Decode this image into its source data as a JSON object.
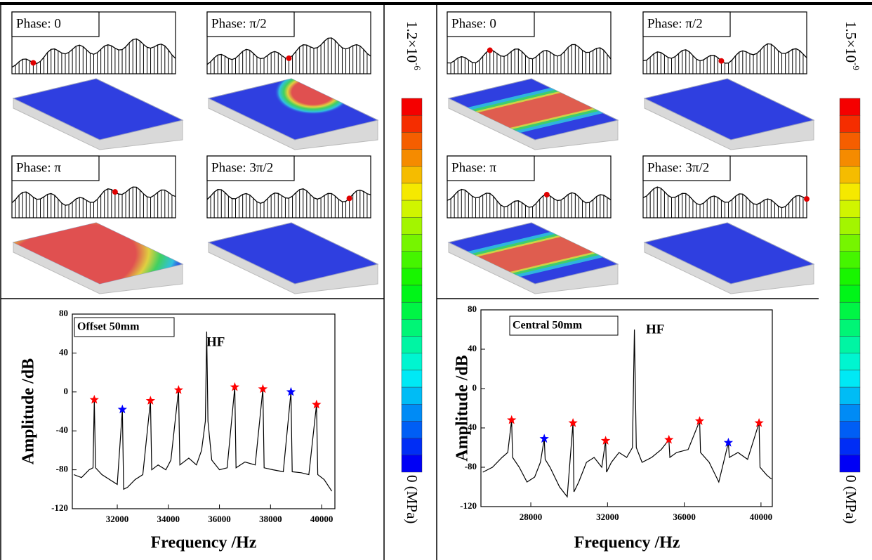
{
  "chart_data": [
    {
      "type": "line",
      "x": [
        30300,
        30600,
        30900,
        31050,
        31100,
        31150,
        31400,
        31700,
        32000,
        32200,
        32250,
        32400,
        32700,
        33000,
        33300,
        33350,
        33600,
        33900,
        34100,
        34400,
        34450,
        34800,
        35100,
        35300,
        35450,
        35500,
        35550,
        35700,
        36000,
        36300,
        36600,
        36650,
        37000,
        37400,
        37700,
        37750,
        38100,
        38500,
        38800,
        38850,
        39200,
        39500,
        39800,
        39850,
        40100,
        40400
      ],
      "series": [
        {
          "color": "#000000",
          "values": [
            -85,
            -88,
            -80,
            -78,
            -8,
            -78,
            -85,
            -90,
            -95,
            -18,
            -100,
            -98,
            -90,
            -85,
            -9,
            -80,
            -75,
            -80,
            -70,
            2,
            -75,
            -68,
            -75,
            -60,
            -30,
            62,
            -30,
            -70,
            -80,
            -78,
            5,
            -78,
            -72,
            -75,
            3,
            -78,
            -80,
            -82,
            0,
            -82,
            -83,
            -85,
            -13,
            -85,
            -90,
            -102
          ]
        }
      ],
      "markers": {
        "x": [
          31100,
          32200,
          33300,
          34400,
          36600,
          37700,
          38800,
          39800
        ],
        "values": [
          -8,
          -18,
          -9,
          2,
          5,
          3,
          0,
          -13
        ],
        "colors": [
          "#ff0000",
          "#0000ff",
          "#ff0000",
          "#ff0000",
          "#ff0000",
          "#ff0000",
          "#0000ff",
          "#ff0000"
        ]
      },
      "xlim": [
        30240,
        40520
      ],
      "xticks": [
        32000,
        34000,
        36000,
        38000,
        40000
      ],
      "ylim": [
        -120,
        80
      ],
      "yticks": [
        -120,
        -80,
        -40,
        0,
        40,
        80
      ],
      "x_label": "Frequency /Hz",
      "y_label": "Amplitude /dB",
      "annotations": [
        "Offset 50mm",
        "HF"
      ]
    },
    {
      "type": "line",
      "x": [
        25500,
        26000,
        26500,
        26800,
        27000,
        27050,
        27400,
        27800,
        28200,
        28500,
        28700,
        28750,
        29000,
        29500,
        29900,
        30200,
        30250,
        30500,
        30900,
        31300,
        31700,
        31900,
        31950,
        32200,
        32600,
        33000,
        33300,
        33400,
        33500,
        33800,
        34300,
        34800,
        35200,
        35250,
        35600,
        36200,
        36800,
        36850,
        37300,
        37800,
        38300,
        38350,
        38800,
        39300,
        39900,
        39950,
        40300,
        40550
      ],
      "series": [
        {
          "color": "#000000",
          "values": [
            -85,
            -80,
            -70,
            -65,
            -32,
            -70,
            -80,
            -95,
            -90,
            -75,
            -51,
            -72,
            -80,
            -100,
            -110,
            -35,
            -105,
            -95,
            -75,
            -70,
            -80,
            -53,
            -85,
            -75,
            -65,
            -70,
            -60,
            60,
            -60,
            -75,
            -70,
            -62,
            -52,
            -70,
            -65,
            -62,
            -33,
            -65,
            -75,
            -95,
            -55,
            -70,
            -65,
            -72,
            -35,
            -80,
            -88,
            -92
          ]
        }
      ],
      "markers": {
        "x": [
          27000,
          28700,
          30200,
          31900,
          35200,
          36800,
          38300,
          39900
        ],
        "values": [
          -32,
          -51,
          -35,
          -53,
          -52,
          -33,
          -55,
          -35
        ],
        "colors": [
          "#ff0000",
          "#0000ff",
          "#ff0000",
          "#ff0000",
          "#ff0000",
          "#ff0000",
          "#0000ff",
          "#ff0000"
        ]
      },
      "xlim": [
        25400,
        40590
      ],
      "xticks": [
        28000,
        32000,
        36000,
        40000
      ],
      "ylim": [
        -120,
        80
      ],
      "yticks": [
        -120,
        -80,
        -40,
        0,
        40,
        80
      ],
      "x_label": "Frequency /Hz",
      "y_label": "Amplitude /dB",
      "annotations": [
        "Central 50mm",
        "HF"
      ]
    }
  ],
  "phase_panels": [
    {
      "labels": [
        "Phase: 0",
        "Phase: π/2",
        "Phase: π",
        "Phase: 3π/2"
      ]
    },
    {
      "labels": [
        "Phase: 0",
        "Phase: π/2",
        "Phase: π",
        "Phase: 3π/2"
      ]
    }
  ],
  "colorbars": [
    {
      "max_label": "1.2×10",
      "max_exponent": "-6",
      "min_label": "0 (MPa)"
    },
    {
      "max_label": "1.5×10",
      "max_exponent": "-9",
      "min_label": "0 (MPa)"
    }
  ]
}
